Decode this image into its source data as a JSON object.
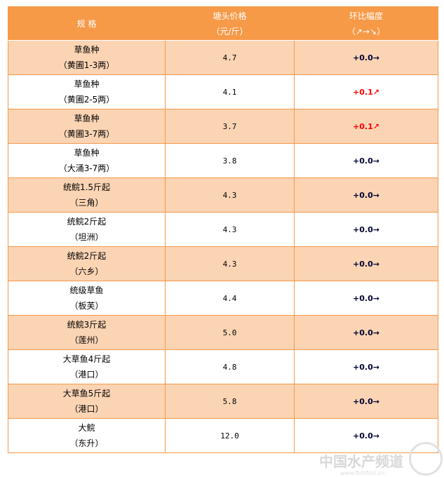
{
  "header": {
    "col1": "规 格",
    "col2_line1": "塘头价格",
    "col2_line2": "（元/斤）",
    "col3_line1": "环比幅度",
    "col3_line2": "（↗→↘）"
  },
  "rows": [
    {
      "name": "草鱼种",
      "origin": "（黄圃1-3两）",
      "price": "4.7",
      "change": "+0.0→",
      "trend": "flat"
    },
    {
      "name": "草鱼种",
      "origin": "（黄圃2-5两）",
      "price": "4.1",
      "change": "+0.1↗",
      "trend": "up"
    },
    {
      "name": "草鱼种",
      "origin": "（黄圃3-7两）",
      "price": "3.7",
      "change": "+0.1↗",
      "trend": "up"
    },
    {
      "name": "草鱼种",
      "origin": "（大涌3-7两）",
      "price": "3.8",
      "change": "+0.0→",
      "trend": "flat"
    },
    {
      "name": "统鲩1.5斤起",
      "origin": "（三角）",
      "price": "4.3",
      "change": "+0.0→",
      "trend": "flat"
    },
    {
      "name": "统鲩2斤起",
      "origin": "（坦洲）",
      "price": "4.3",
      "change": "+0.0→",
      "trend": "flat"
    },
    {
      "name": "统鲩2斤起",
      "origin": "（六乡）",
      "price": "4.3",
      "change": "+0.0→",
      "trend": "flat"
    },
    {
      "name": "统级草鱼",
      "origin": "（板芙）",
      "price": "4.4",
      "change": "+0.0→",
      "trend": "flat"
    },
    {
      "name": "统鲩3斤起",
      "origin": "（莲州）",
      "price": "5.0",
      "change": "+0.0→",
      "trend": "flat"
    },
    {
      "name": "大草鱼4斤起",
      "origin": "（港口）",
      "price": "4.8",
      "change": "+0.0→",
      "trend": "flat"
    },
    {
      "name": "大草鱼5斤起",
      "origin": "（港口）",
      "price": "5.8",
      "change": "+0.0→",
      "trend": "flat"
    },
    {
      "name": "大鲩",
      "origin": "（东升）",
      "price": "12.0",
      "change": "+0.0→",
      "trend": "flat"
    }
  ],
  "watermark": {
    "title": "中国水产频道",
    "url": "www.fishfirst.cn"
  },
  "colors": {
    "header_bg": "#f79a48",
    "odd_row_bg": "#fbd4b4",
    "up": "#ff0000",
    "flat": "#000033"
  }
}
